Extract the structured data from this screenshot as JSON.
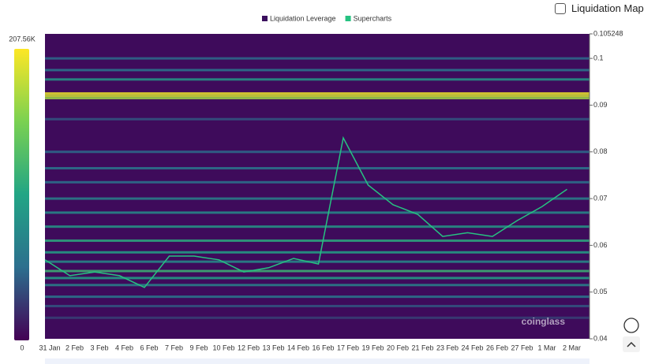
{
  "controls": {
    "liquidation_map": "Liquidation Map"
  },
  "watermark": "coinglass",
  "chart_data": {
    "type": "heatmap",
    "categories": [
      "31 Jan",
      "2 Feb",
      "3 Feb",
      "4 Feb",
      "6 Feb",
      "7 Feb",
      "9 Feb",
      "10 Feb",
      "12 Feb",
      "13 Feb",
      "14 Feb",
      "16 Feb",
      "17 Feb",
      "19 Feb",
      "20 Feb",
      "21 Feb",
      "23 Feb",
      "24 Feb",
      "26 Feb",
      "27 Feb",
      "1 Mar",
      "2 Mar"
    ],
    "heatmap": {
      "name": "Liquidation Leverage",
      "color": "#3b0f5e",
      "levels": [
        0.0925,
        0.092,
        0.0915,
        0.0955,
        0.0975,
        0.1,
        0.087,
        0.08,
        0.0765,
        0.0735,
        0.07,
        0.067,
        0.064,
        0.061,
        0.0585,
        0.0565,
        0.0545,
        0.053,
        0.0515,
        0.049,
        0.047,
        0.0445
      ],
      "intensity": [
        200,
        190,
        170,
        90,
        60,
        50,
        40,
        50,
        60,
        55,
        70,
        80,
        90,
        110,
        100,
        80,
        120,
        100,
        70,
        60,
        40,
        30
      ]
    },
    "series": [
      {
        "name": "Supercharts",
        "color": "#26c281",
        "values": [
          0.0569,
          0.0535,
          0.0543,
          0.0535,
          0.051,
          0.0577,
          0.0577,
          0.0569,
          0.0543,
          0.0552,
          0.0572,
          0.056,
          0.083,
          0.0729,
          0.0687,
          0.0666,
          0.0619,
          0.0627,
          0.0619,
          0.0653,
          0.0683,
          0.072
        ]
      }
    ],
    "ylim": [
      0.04,
      0.105248
    ],
    "yticks": [
      0.04,
      0.05,
      0.06,
      0.07,
      0.08,
      0.09,
      0.1,
      0.105248
    ],
    "colorbar": {
      "lim": [
        0,
        207.56
      ],
      "ticks": [
        0,
        {
          "value": 207.56,
          "label": "207.56K"
        }
      ],
      "colors": [
        "#440154",
        "#2c6f8e",
        "#21a585",
        "#7ad151",
        "#fde725"
      ]
    }
  }
}
